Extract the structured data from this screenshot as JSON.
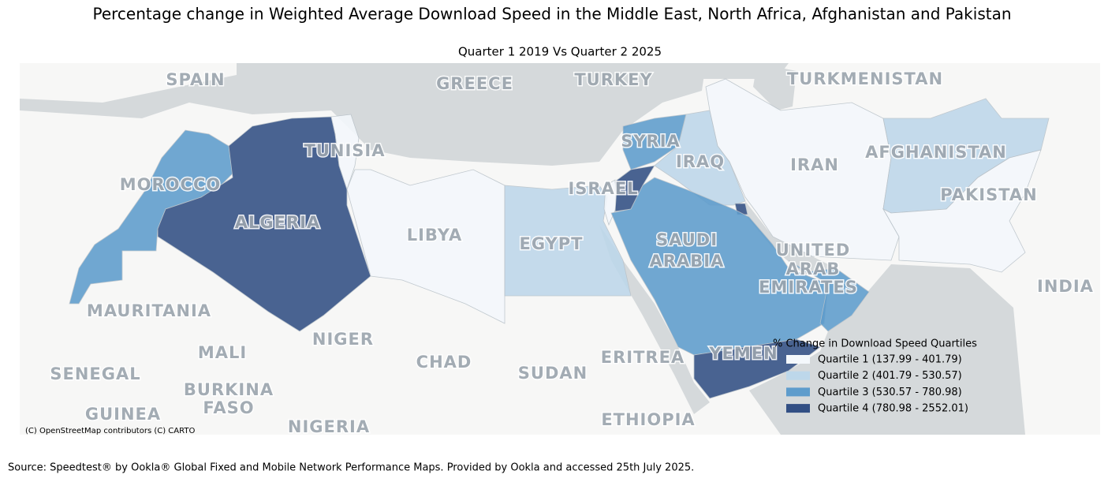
{
  "title": "Percentage change in Weighted Average Download Speed in the Middle East, North Africa, Afghanistan and Pakistan",
  "subtitle": "Quarter 1 2019 Vs Quarter 2 2025",
  "legend": {
    "title": "% Change in Download Speed Quartiles",
    "items": [
      {
        "label": "Quartile 1 (137.99 - 401.79)",
        "color": "#f4f8fc"
      },
      {
        "label": "Quartile 2 (401.79 - 530.57)",
        "color": "#bdd7ea"
      },
      {
        "label": "Quartile 3 (530.57 - 780.98)",
        "color": "#5e9ccc"
      },
      {
        "label": "Quartile 4 (780.98 - 2552.01)",
        "color": "#324f84"
      }
    ]
  },
  "map_labels": [
    "SPAIN",
    "GREECE",
    "TURKEY",
    "TURKMENISTAN",
    "MOROCCO",
    "TUNISIA",
    "ALGERIA",
    "LIBYA",
    "EGYPT",
    "ISRAEL",
    "SYRIA",
    "IRAQ",
    "IRAN",
    "AFGHANISTAN",
    "PAKISTAN",
    "SAUDI",
    "ARABIA",
    "UNITED",
    "ARAB",
    "EMIRATES",
    "INDIA",
    "MAURITANIA",
    "MALI",
    "NIGER",
    "CHAD",
    "SUDAN",
    "ERITREA",
    "YEMEN",
    "SENEGAL",
    "BURKINA",
    "FASO",
    "GUINEA",
    "NIGERIA",
    "ETHIOPIA"
  ],
  "attribution": "(C) OpenStreetMap contributors (C) CARTO",
  "source": "Source: Speedtest® by Ookla® Global Fixed and Mobile Network Performance Maps. Provided by Ookla and accessed 25th July 2025."
}
